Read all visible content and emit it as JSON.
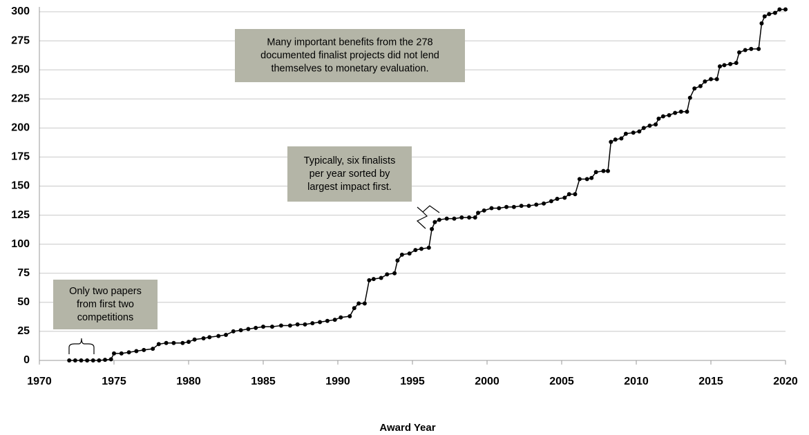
{
  "chart_data": {
    "type": "line",
    "xlabel": "Award Year",
    "xlim": [
      1970,
      2020
    ],
    "xticks": [
      1970,
      1975,
      1980,
      1985,
      1990,
      1995,
      2000,
      2005,
      2010,
      2015,
      2020
    ],
    "ylim": [
      0,
      300
    ],
    "yticks": [
      0,
      25,
      50,
      75,
      100,
      125,
      150,
      175,
      200,
      225,
      250,
      275,
      300
    ],
    "grid": true,
    "series": [
      {
        "color": "#000000",
        "x": [
          1972.0,
          1972.4,
          1972.8,
          1973.2,
          1973.6,
          1974.0,
          1974.4,
          1974.8,
          1975.0,
          1975.5,
          1976.0,
          1976.5,
          1977.0,
          1977.6,
          1978.0,
          1978.5,
          1979.0,
          1979.6,
          1980.0,
          1980.4,
          1981.0,
          1981.4,
          1982.0,
          1982.5,
          1983.0,
          1983.5,
          1984.0,
          1984.5,
          1985.0,
          1985.6,
          1986.2,
          1986.8,
          1987.3,
          1987.8,
          1988.3,
          1988.8,
          1989.3,
          1989.8,
          1990.2,
          1990.8,
          1991.1,
          1991.4,
          1991.8,
          1992.1,
          1992.4,
          1992.9,
          1993.3,
          1993.8,
          1994.0,
          1994.3,
          1994.8,
          1995.2,
          1995.6,
          1996.1,
          1996.3,
          1996.5,
          1996.8,
          1997.3,
          1997.8,
          1998.3,
          1998.8,
          1999.2,
          1999.4,
          1999.8,
          2000.3,
          2000.8,
          2001.3,
          2001.8,
          2002.3,
          2002.8,
          2003.3,
          2003.8,
          2004.3,
          2004.7,
          2005.2,
          2005.5,
          2005.9,
          2006.2,
          2006.7,
          2007.0,
          2007.3,
          2007.8,
          2008.1,
          2008.3,
          2008.6,
          2009.0,
          2009.3,
          2009.8,
          2010.2,
          2010.5,
          2010.9,
          2011.3,
          2011.5,
          2011.8,
          2012.2,
          2012.6,
          2013.0,
          2013.4,
          2013.6,
          2013.9,
          2014.3,
          2014.6,
          2015.0,
          2015.4,
          2015.6,
          2015.9,
          2016.3,
          2016.7,
          2016.9,
          2017.3,
          2017.7,
          2018.2,
          2018.4,
          2018.6,
          2018.9,
          2019.3,
          2019.6,
          2020.0
        ],
        "values": [
          0,
          0,
          0,
          0,
          0,
          0,
          0.5,
          1,
          6,
          6,
          7,
          8,
          9,
          10,
          14,
          15,
          15,
          15,
          16,
          18,
          19,
          20,
          21,
          22,
          25,
          26,
          27,
          28,
          29,
          29,
          30,
          30,
          31,
          31,
          32,
          33,
          34,
          35,
          37,
          38,
          45,
          49,
          49,
          69,
          70,
          71,
          74,
          75,
          86,
          91,
          92,
          95,
          96,
          97,
          113,
          119,
          121,
          122,
          122,
          123,
          123,
          123,
          127,
          129,
          131,
          131,
          132,
          132,
          133,
          133,
          134,
          135,
          137,
          139,
          140,
          143,
          143,
          156,
          156,
          157,
          162,
          163,
          163,
          188,
          190,
          191,
          195,
          196,
          197,
          200,
          202,
          203,
          208,
          210,
          211,
          213,
          214,
          214,
          226,
          234,
          236,
          240,
          242,
          242,
          253,
          254,
          255,
          256,
          265,
          267,
          268,
          268,
          290,
          296,
          298,
          299,
          302,
          302
        ]
      }
    ],
    "annotations": [
      {
        "lines": [
          "Many important benefits from the 278",
          "documented finalist projects did not lend",
          "themselves to monetary evaluation."
        ]
      },
      {
        "lines": [
          "Typically, six finalists",
          "per year sorted by",
          "largest impact first."
        ]
      },
      {
        "lines": [
          "Only two papers",
          "from first two",
          "competitions"
        ]
      }
    ]
  }
}
